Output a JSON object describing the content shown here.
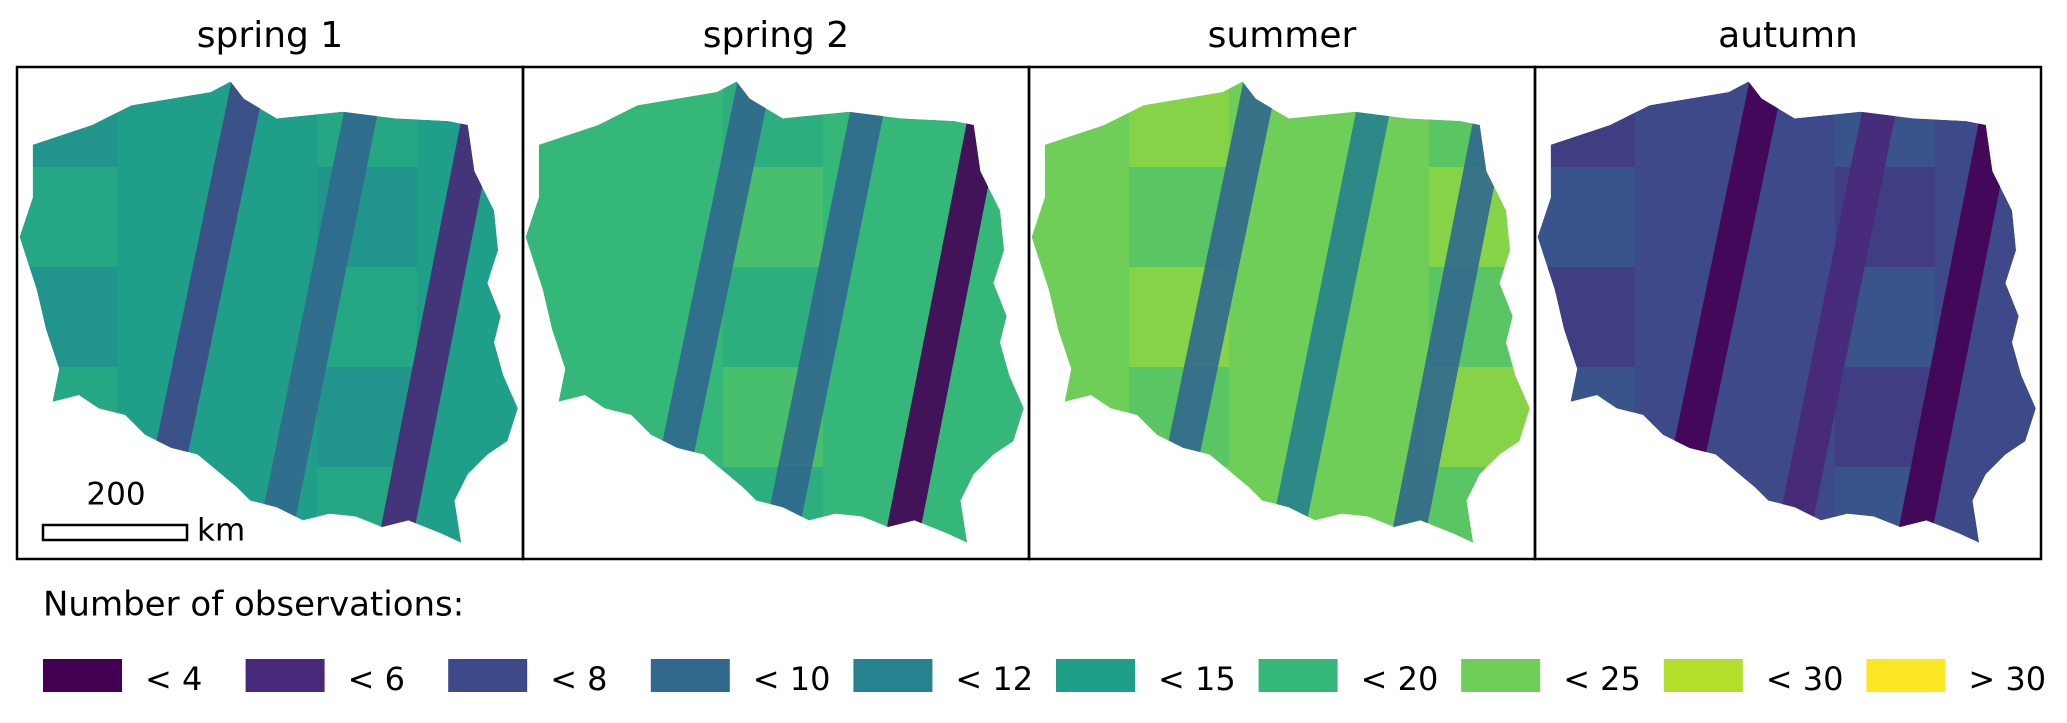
{
  "panels": [
    {
      "title": "spring 1"
    },
    {
      "title": "spring 2"
    },
    {
      "title": "summer"
    },
    {
      "title": "autumn"
    }
  ],
  "scale_bar": {
    "value": 200,
    "unit": "km"
  },
  "legend": {
    "title": "Number of observations:",
    "items": [
      {
        "label": "< 4",
        "color": "#440154"
      },
      {
        "label": "< 6",
        "color": "#482878"
      },
      {
        "label": "< 8",
        "color": "#3e4989"
      },
      {
        "label": "< 10",
        "color": "#31688e"
      },
      {
        "label": "< 12",
        "color": "#26828e"
      },
      {
        "label": "< 15",
        "color": "#1f9e89"
      },
      {
        "label": "< 20",
        "color": "#35b779"
      },
      {
        "label": "< 25",
        "color": "#6ece58"
      },
      {
        "label": "< 30",
        "color": "#b5de2b"
      },
      {
        "label": "> 30",
        "color": "#fde725"
      }
    ]
  }
}
